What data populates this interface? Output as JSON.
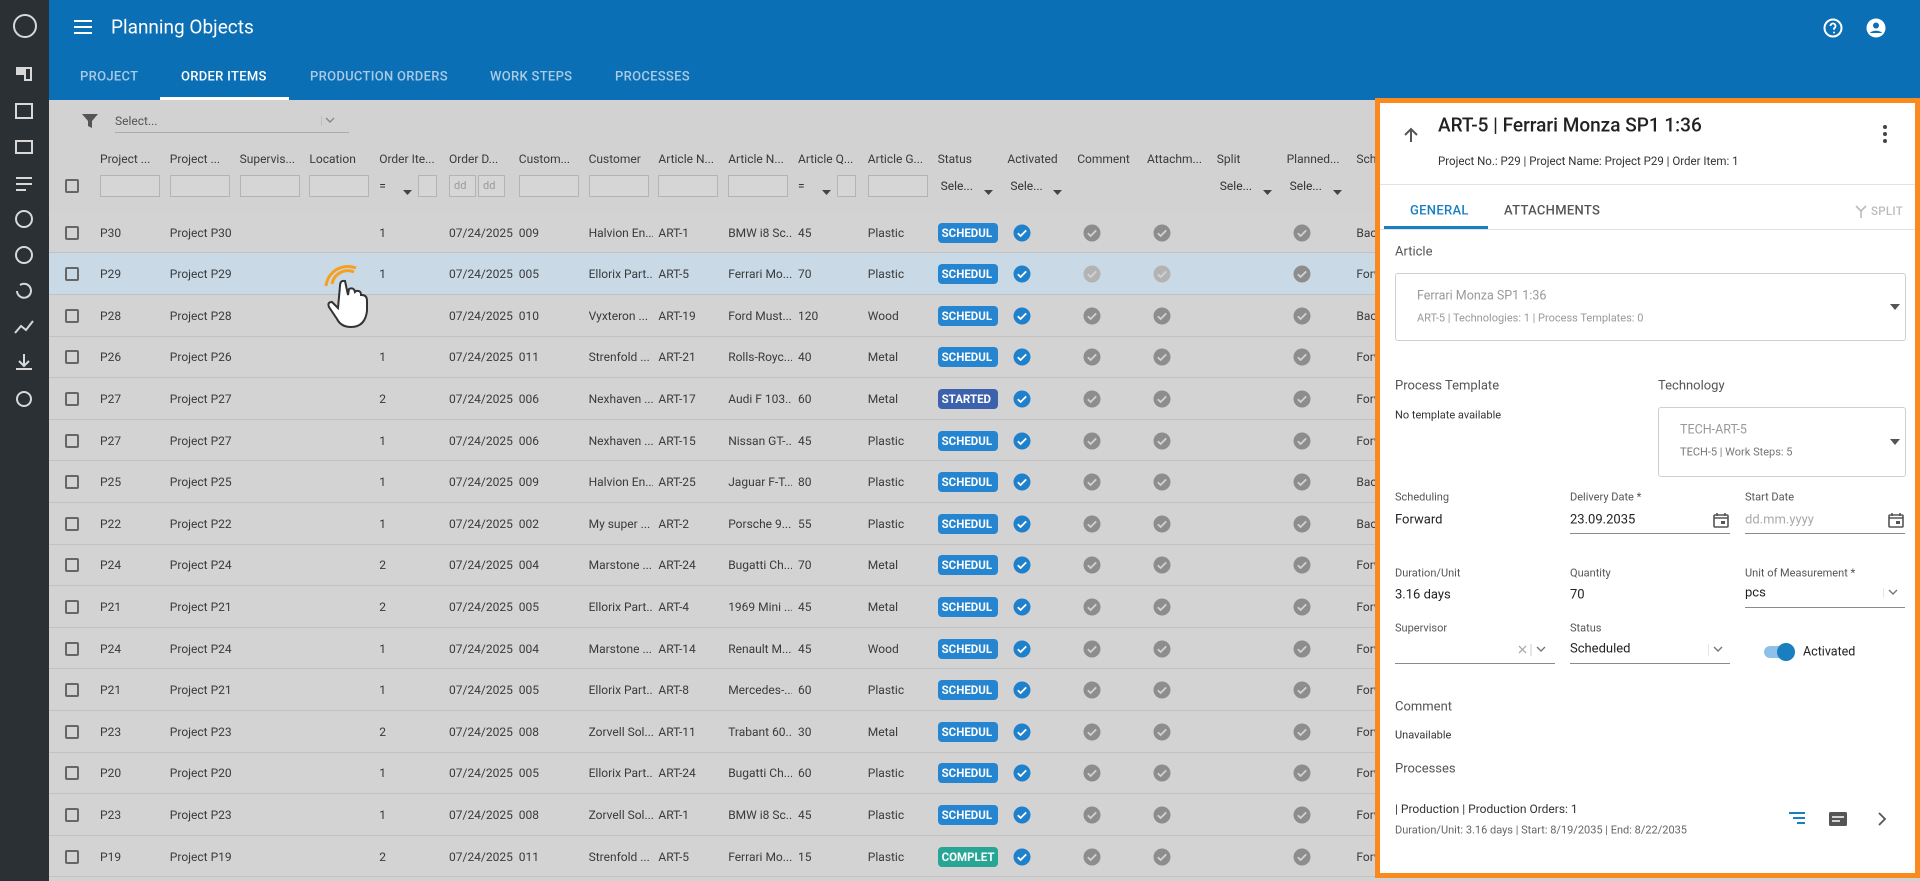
{
  "app": {
    "title": "Planning Objects",
    "tabs": [
      "PROJECT",
      "ORDER ITEMS",
      "PRODUCTION ORDERS",
      "WORK STEPS",
      "PROCESSES"
    ],
    "active_tab": 1
  },
  "filter_bar": {
    "placeholder": "Select..."
  },
  "table": {
    "columns": [
      "Project ...",
      "Project ...",
      "Supervis...",
      "Location",
      "Order Ite...",
      "Order D...",
      "Custom...",
      "Customer",
      "Article N...",
      "Article N...",
      "Article Q...",
      "Article G...",
      "Status",
      "Activated",
      "Comment",
      "Attachm...",
      "Split",
      "Planned...",
      "Sche..."
    ],
    "filter_texts": {
      "equals": "=",
      "date": "dd",
      "select": "Sele..."
    },
    "selected_row": 1,
    "status_colors": {
      "SCHEDUL": "#2585d0",
      "STARTED": "#3d62ad",
      "COMPLET": "#27a595"
    },
    "rows": [
      [
        "P30",
        "Project P30",
        "1",
        "07/24/2025",
        "009",
        "Halvion En...",
        "ART-1",
        "BMW i8 Sc...",
        "45",
        "Plastic",
        "SCHEDUL",
        "Back"
      ],
      [
        "P29",
        "Project P29",
        "1",
        "07/24/2025",
        "005",
        "Ellorix Part...",
        "ART-5",
        "Ferrari Mo...",
        "70",
        "Plastic",
        "SCHEDUL",
        "Forw"
      ],
      [
        "P28",
        "Project P28",
        null,
        "07/24/2025",
        "010",
        "Vyxteron ...",
        "ART-19",
        "Ford Must...",
        "120",
        "Wood",
        "SCHEDUL",
        "Back"
      ],
      [
        "P26",
        "Project P26",
        "1",
        "07/24/2025",
        "011",
        "Strenfold ...",
        "ART-21",
        "Rolls-Royc...",
        "40",
        "Metal",
        "SCHEDUL",
        "Forw"
      ],
      [
        "P27",
        "Project P27",
        "2",
        "07/24/2025",
        "006",
        "Nexhaven ...",
        "ART-17",
        "Audi F 103...",
        "60",
        "Metal",
        "STARTED",
        "Forw"
      ],
      [
        "P27",
        "Project P27",
        "1",
        "07/24/2025",
        "006",
        "Nexhaven ...",
        "ART-15",
        "Nissan GT-...",
        "45",
        "Plastic",
        "SCHEDUL",
        "Forw"
      ],
      [
        "P25",
        "Project P25",
        "1",
        "07/24/2025",
        "009",
        "Halvion En...",
        "ART-25",
        "Jaguar F-T...",
        "80",
        "Plastic",
        "SCHEDUL",
        "Back"
      ],
      [
        "P22",
        "Project P22",
        "1",
        "07/24/2025",
        "002",
        "My super ...",
        "ART-2",
        "Porsche 9...",
        "55",
        "Plastic",
        "SCHEDUL",
        "Back"
      ],
      [
        "P24",
        "Project P24",
        "2",
        "07/24/2025",
        "004",
        "Marstone ...",
        "ART-24",
        "Bugatti Ch...",
        "70",
        "Metal",
        "SCHEDUL",
        "Forw"
      ],
      [
        "P21",
        "Project P21",
        "2",
        "07/24/2025",
        "005",
        "Ellorix Part...",
        "ART-4",
        "1969 Mini ...",
        "45",
        "Metal",
        "SCHEDUL",
        "Forw"
      ],
      [
        "P24",
        "Project P24",
        "1",
        "07/24/2025",
        "004",
        "Marstone ...",
        "ART-14",
        "Renault M...",
        "45",
        "Wood",
        "SCHEDUL",
        "Forw"
      ],
      [
        "P21",
        "Project P21",
        "1",
        "07/24/2025",
        "005",
        "Ellorix Part...",
        "ART-8",
        "Mercedes-...",
        "60",
        "Plastic",
        "SCHEDUL",
        "Forw"
      ],
      [
        "P23",
        "Project P23",
        "2",
        "07/24/2025",
        "008",
        "Zorvell Sol...",
        "ART-11",
        "Trabant 60...",
        "30",
        "Metal",
        "SCHEDUL",
        "Forw"
      ],
      [
        "P20",
        "Project P20",
        "1",
        "07/24/2025",
        "005",
        "Ellorix Part...",
        "ART-24",
        "Bugatti Ch...",
        "60",
        "Plastic",
        "SCHEDUL",
        "Forw"
      ],
      [
        "P23",
        "Project P23",
        "1",
        "07/24/2025",
        "008",
        "Zorvell Sol...",
        "ART-1",
        "BMW i8 Sc...",
        "45",
        "Plastic",
        "SCHEDUL",
        "Forw"
      ],
      [
        "P19",
        "Project P19",
        "2",
        "07/24/2025",
        "011",
        "Strenfold ...",
        "ART-5",
        "Ferrari Mo...",
        "15",
        "Plastic",
        "COMPLET",
        "Forw"
      ]
    ]
  },
  "panel": {
    "title": "ART-5 | Ferrari Monza SP1 1:36",
    "subtitle": "Project No.: P29 | Project Name: Project P29 | Order Item: 1",
    "tabs": [
      "GENERAL",
      "ATTACHMENTS"
    ],
    "split": "SPLIT",
    "article": {
      "label": "Article",
      "name": "Ferrari Monza SP1 1:36",
      "details": "ART-5 | Technologies: 1 | Process Templates: 0"
    },
    "process_template": {
      "label": "Process Template",
      "value": "No template available"
    },
    "technology": {
      "label": "Technology",
      "name": "TECH-ART-5",
      "details": "TECH-5 | Work Steps: 5"
    },
    "fields": {
      "scheduling": {
        "label": "Scheduling",
        "value": "Forward"
      },
      "delivery_date": {
        "label": "Delivery Date *",
        "value": "23.09.2035"
      },
      "start_date": {
        "label": "Start Date",
        "placeholder": "dd.mm.yyyy"
      },
      "duration": {
        "label": "Duration/Unit",
        "value": "3.16 days"
      },
      "quantity": {
        "label": "Quantity",
        "value": "70"
      },
      "unit": {
        "label": "Unit of Measurement *",
        "value": "pcs"
      },
      "supervisor": {
        "label": "Supervisor"
      },
      "status": {
        "label": "Status",
        "value": "Scheduled"
      },
      "activated": {
        "label": "Activated"
      }
    },
    "comment": {
      "label": "Comment",
      "value": "Unavailable"
    },
    "processes": {
      "label": "Processes",
      "items": [
        {
          "title": "| Production | Production Orders: 1",
          "details": "Duration/Unit: 3.16 days | Start: 8/19/2035 | End: 8/22/2035"
        }
      ]
    }
  }
}
